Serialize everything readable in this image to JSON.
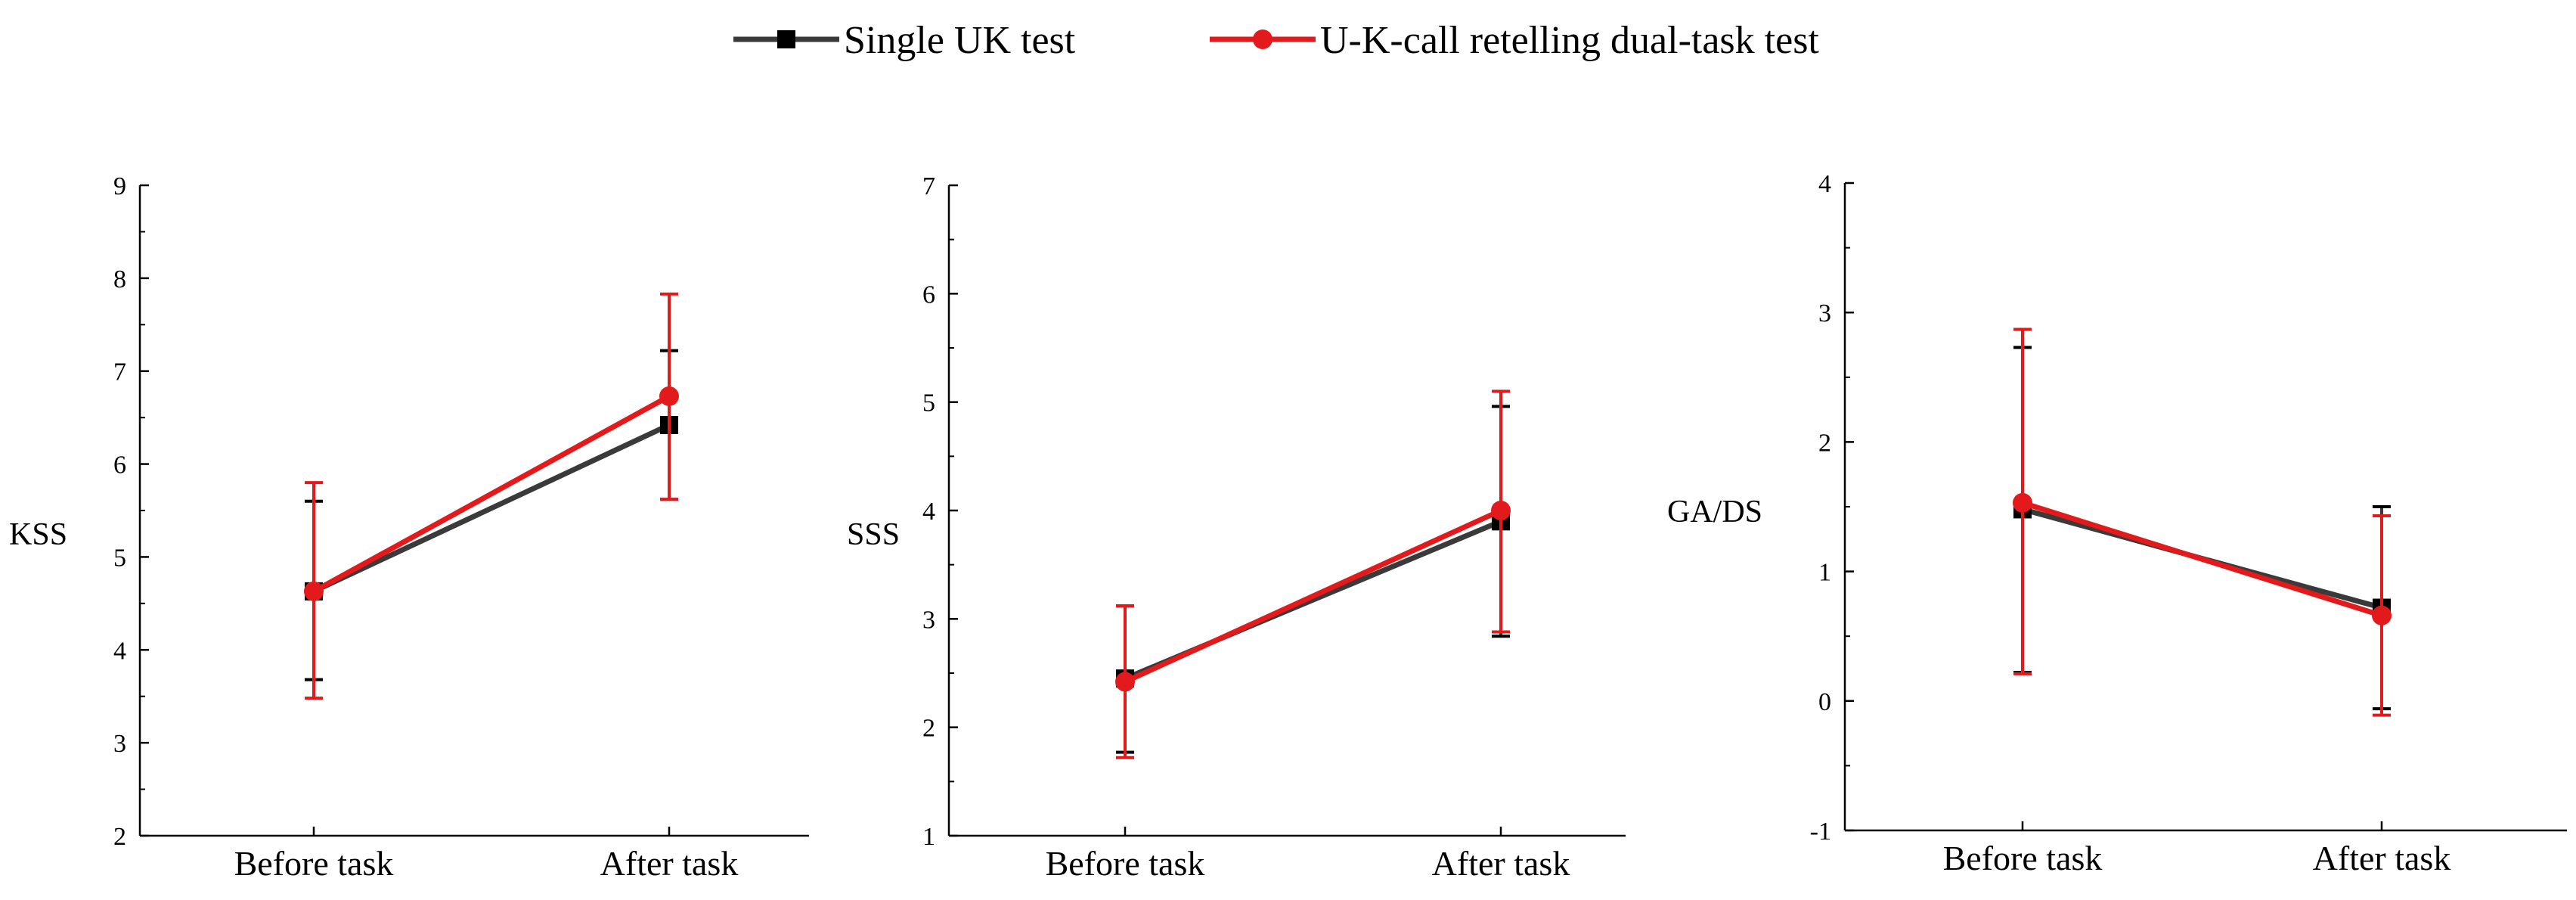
{
  "legend": {
    "position": "top-center",
    "items": [
      {
        "label": "Single UK test",
        "color": "#3a3a3a",
        "marker": "square"
      },
      {
        "label": "U-K-call retelling dual-task test",
        "color": "#e31a1c",
        "marker": "circle"
      }
    ]
  },
  "colors": {
    "single": "#3a3a3a",
    "dual": "#e31a1c",
    "axis": "#000000"
  },
  "chart_data": [
    {
      "type": "line",
      "ylabel": "KSS",
      "ylim": [
        2,
        9
      ],
      "yticks": [
        2,
        3,
        4,
        5,
        6,
        7,
        8,
        9
      ],
      "categories": [
        "Before task",
        "After task"
      ],
      "series": [
        {
          "name": "Single UK test",
          "values": [
            4.63,
            6.42
          ],
          "error_low": [
            3.68,
            5.62
          ],
          "error_high": [
            5.6,
            7.22
          ]
        },
        {
          "name": "U-K-call retelling dual-task test",
          "values": [
            4.63,
            6.73
          ],
          "error_low": [
            3.48,
            5.62
          ],
          "error_high": [
            5.8,
            7.83
          ]
        }
      ]
    },
    {
      "type": "line",
      "ylabel": "SSS",
      "ylim": [
        1,
        7
      ],
      "yticks": [
        1,
        2,
        3,
        4,
        5,
        6,
        7
      ],
      "categories": [
        "Before task",
        "After task"
      ],
      "series": [
        {
          "name": "Single UK test",
          "values": [
            2.45,
            3.9
          ],
          "error_low": [
            1.77,
            2.84
          ],
          "error_high": [
            3.12,
            4.96
          ]
        },
        {
          "name": "U-K-call retelling dual-task test",
          "values": [
            2.42,
            4.0
          ],
          "error_low": [
            1.72,
            2.88
          ],
          "error_high": [
            3.12,
            5.1
          ]
        }
      ]
    },
    {
      "type": "line",
      "ylabel": "GA/DS",
      "ylim": [
        -1,
        4
      ],
      "yticks": [
        -1,
        0,
        1,
        2,
        3,
        4
      ],
      "categories": [
        "Before task",
        "After task"
      ],
      "series": [
        {
          "name": "Single UK test",
          "values": [
            1.48,
            0.72
          ],
          "error_low": [
            0.22,
            -0.06
          ],
          "error_high": [
            2.73,
            1.5
          ]
        },
        {
          "name": "U-K-call retelling dual-task test",
          "values": [
            1.53,
            0.66
          ],
          "error_low": [
            0.21,
            -0.11
          ],
          "error_high": [
            2.87,
            1.43
          ]
        }
      ]
    }
  ]
}
